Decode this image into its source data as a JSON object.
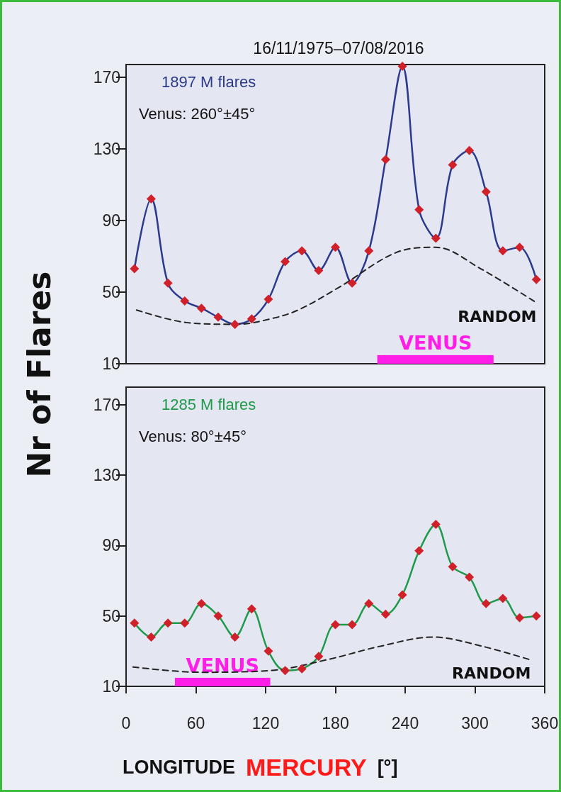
{
  "chart_data": [
    {
      "type": "line",
      "title": "16/11/1975–07/08/2016",
      "ylabel": "Nr of Flares",
      "xlim": [
        0,
        360
      ],
      "ylim": [
        10,
        177
      ],
      "yticks": [
        10,
        50,
        90,
        130,
        170
      ],
      "tick_labels": "y",
      "grid": false,
      "legend": "top left",
      "annotations": [
        "Venus: 260°±45°",
        {
          "text": "RANDOM",
          "x": 353,
          "y": 44
        }
      ],
      "bands": [
        {
          "axis": "x",
          "from": 216,
          "to": 316,
          "label": "VENUS",
          "color": "#ff1ee8"
        }
      ],
      "series": [
        {
          "name": "1897 M flares",
          "color": "#2b3a8c",
          "marker": "diamond",
          "colors": [
            "#d0202a",
            "#d0202a",
            "#d0202a",
            "#d0202a",
            "#d0202a",
            "#d0202a",
            "#d0202a",
            "#d0202a",
            "#d0202a",
            "#d0202a",
            "#d0202a",
            "#d0202a",
            "#d0202a",
            "#d0202a",
            "#d0202a",
            "#d0202a",
            "#d0202a",
            "#d0202a",
            "#d0202a",
            "#d0202a",
            "#d0202a",
            "#d0202a",
            "#d0202a",
            "#d0202a",
            "#d0202a"
          ],
          "x": [
            7.2,
            21.6,
            36,
            50.4,
            64.8,
            79.2,
            93.6,
            108,
            122.4,
            136.8,
            151.2,
            165.6,
            180,
            194.4,
            208.8,
            223.2,
            237.6,
            252,
            266.4,
            280.8,
            295.2,
            309.6,
            324,
            338.4,
            352.8
          ],
          "values": [
            63,
            102,
            55,
            45,
            41,
            36,
            32,
            35,
            46,
            67,
            73,
            62,
            75,
            55,
            73,
            124,
            176,
            96,
            80,
            121,
            129,
            106,
            73,
            75,
            57
          ]
        },
        {
          "color": "#222222",
          "marker": "none",
          "line_style": "dashed",
          "x": [
            9,
            52,
            95,
            124,
            148,
            184,
            232,
            266,
            305,
            353
          ],
          "values": [
            40,
            33,
            32,
            35,
            40,
            53,
            72,
            75,
            63,
            44
          ]
        }
      ]
    },
    {
      "type": "line",
      "xlabel": "LONGITUDE MERCURY [°]",
      "xlim": [
        0,
        360
      ],
      "xticks": [
        0,
        60,
        120,
        180,
        240,
        300,
        360
      ],
      "ylim": [
        10,
        180
      ],
      "yticks": [
        10,
        50,
        90,
        130,
        170
      ],
      "grid": false,
      "legend": "top left",
      "annotations": [
        "Venus: 80°±45°",
        {
          "text": "RANDOM",
          "x": 348,
          "y": 25
        }
      ],
      "bands": [
        {
          "axis": "x",
          "from": 42,
          "to": 124,
          "label": "VENUS",
          "color": "#ff1ee8"
        }
      ],
      "series": [
        {
          "name": "1285 M flares",
          "color": "#1e9a4a",
          "marker": "diamond",
          "colors": [
            "#d0202a",
            "#d0202a",
            "#d0202a",
            "#d0202a",
            "#d0202a",
            "#d0202a",
            "#d0202a",
            "#d0202a",
            "#d0202a",
            "#d0202a",
            "#d0202a",
            "#d0202a",
            "#d0202a",
            "#d0202a",
            "#d0202a",
            "#d0202a",
            "#d0202a",
            "#d0202a",
            "#d0202a",
            "#d0202a",
            "#d0202a",
            "#d0202a",
            "#d0202a",
            "#d0202a",
            "#d0202a"
          ],
          "x": [
            7.2,
            21.6,
            36,
            50.4,
            64.8,
            79.2,
            93.6,
            108,
            122.4,
            136.8,
            151.2,
            165.6,
            180,
            194.4,
            208.8,
            223.2,
            237.6,
            252,
            266.4,
            280.8,
            295.2,
            309.6,
            324,
            338.4,
            352.8
          ],
          "values": [
            46,
            38,
            46,
            46,
            57,
            50,
            38,
            54,
            30,
            19,
            20,
            27,
            45,
            45,
            57,
            51,
            62,
            87,
            102,
            78,
            72,
            57,
            60,
            49,
            50
          ]
        },
        {
          "color": "#222222",
          "marker": "none",
          "line_style": "dashed",
          "x": [
            6,
            64,
            124,
            172,
            220,
            264,
            305,
            348
          ],
          "values": [
            21,
            18,
            19,
            25,
            33,
            38,
            33,
            25
          ]
        }
      ]
    }
  ]
}
